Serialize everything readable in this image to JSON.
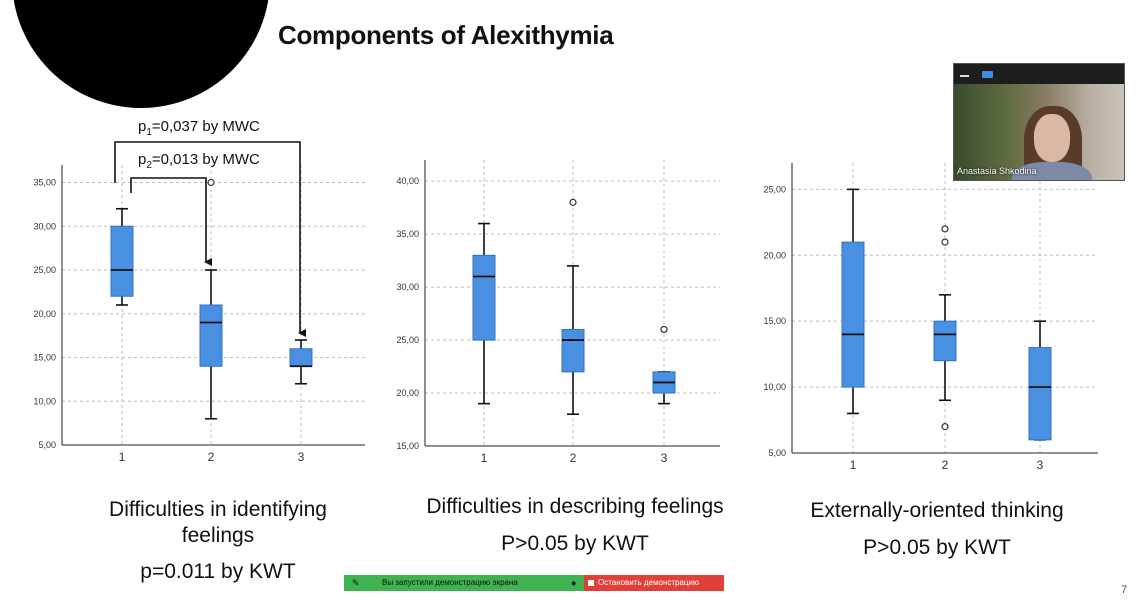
{
  "slide": {
    "title": "Components of Alexithymia",
    "page_number": "7"
  },
  "annotations": {
    "p1": {
      "prefix": "p",
      "sub": "1",
      "text": "=0,037 by MWC"
    },
    "p2": {
      "prefix": "p",
      "sub": "2",
      "text": "=0,013 by MWC"
    }
  },
  "captions": {
    "c1": {
      "line1": "Difficulties in identifying",
      "line2": "feelings",
      "stat": "p=0.011 by KWT"
    },
    "c2": {
      "line1": "Difficulties in describing feelings",
      "stat": "P>0.05 by KWT"
    },
    "c3": {
      "line1": "Externally-oriented thinking",
      "stat": "P>0.05 by KWT"
    }
  },
  "webcam": {
    "name": "Anastasia Shkodina"
  },
  "share_bar": {
    "started": "Вы запустили демонстрацию экрана",
    "stop": "Остановить демонстрацию"
  },
  "colors": {
    "box": "#4a90e2",
    "box_stroke": "#2f72c4",
    "grid": "#bdbdbd",
    "axis": "#222222"
  },
  "chart_data": [
    {
      "type": "boxplot",
      "title": "Difficulties in identifying feelings",
      "categories": [
        "1",
        "2",
        "3"
      ],
      "ylim": [
        5,
        37
      ],
      "yticks": [
        5,
        10,
        15,
        20,
        25,
        30,
        35
      ],
      "ytick_labels": [
        "5,00",
        "10,00",
        "15,00",
        "20,00",
        "25,00",
        "30,00",
        "35,00"
      ],
      "boxes": [
        {
          "min": 21,
          "q1": 22,
          "median": 25,
          "q3": 30,
          "max": 32,
          "outliers": []
        },
        {
          "min": 8,
          "q1": 14,
          "median": 19,
          "q3": 21,
          "max": 25,
          "outliers": [
            35
          ]
        },
        {
          "min": 12,
          "q1": 14,
          "median": 14,
          "q3": 16,
          "max": 17,
          "outliers": []
        }
      ]
    },
    {
      "type": "boxplot",
      "title": "Difficulties in describing feelings",
      "categories": [
        "1",
        "2",
        "3"
      ],
      "ylim": [
        15,
        42
      ],
      "yticks": [
        15,
        20,
        25,
        30,
        35,
        40
      ],
      "ytick_labels": [
        "15,00",
        "20,00",
        "25,00",
        "30,00",
        "35,00",
        "40,00"
      ],
      "boxes": [
        {
          "min": 19,
          "q1": 25,
          "median": 31,
          "q3": 33,
          "max": 36,
          "outliers": []
        },
        {
          "min": 18,
          "q1": 22,
          "median": 25,
          "q3": 26,
          "max": 32,
          "outliers": [
            38
          ]
        },
        {
          "min": 19,
          "q1": 20,
          "median": 21,
          "q3": 22,
          "max": 22,
          "outliers": [
            26
          ]
        }
      ]
    },
    {
      "type": "boxplot",
      "title": "Externally-oriented thinking",
      "categories": [
        "1",
        "2",
        "3"
      ],
      "ylim": [
        5,
        27
      ],
      "yticks": [
        5,
        10,
        15,
        20,
        25
      ],
      "ytick_labels": [
        "5,00",
        "10,00",
        "15,00",
        "20,00",
        "25,00"
      ],
      "boxes": [
        {
          "min": 8,
          "q1": 10,
          "median": 14,
          "q3": 21,
          "max": 25,
          "outliers": []
        },
        {
          "min": 9,
          "q1": 12,
          "median": 14,
          "q3": 15,
          "max": 17,
          "outliers": [
            21,
            22,
            7
          ]
        },
        {
          "min": 6,
          "q1": 6,
          "median": 10,
          "q3": 13,
          "max": 15,
          "outliers": []
        }
      ]
    }
  ]
}
